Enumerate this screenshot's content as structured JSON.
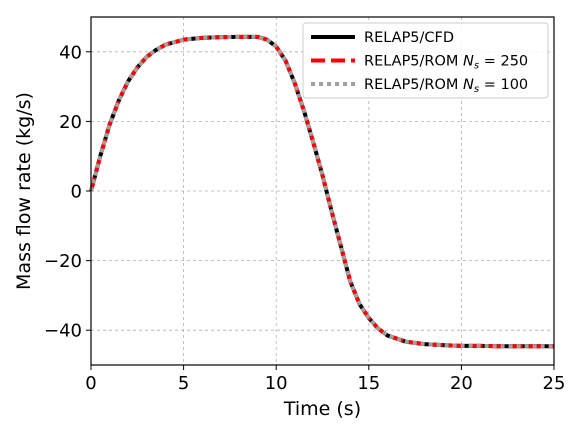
{
  "chart_data": {
    "type": "line",
    "title": "",
    "xlabel": "Time (s)",
    "ylabel": "Mass flow rate (kg/s)",
    "xlim": [
      0,
      25
    ],
    "ylim": [
      -50,
      50
    ],
    "xticks": [
      0,
      5,
      10,
      15,
      20,
      25
    ],
    "yticks": [
      -40,
      -20,
      0,
      20,
      40
    ],
    "xtick_labels": [
      "0",
      "5",
      "10",
      "15",
      "20",
      "25"
    ],
    "ytick_labels": [
      "−40",
      "−20",
      "0",
      "20",
      "40"
    ],
    "grid": true,
    "legend": {
      "position": "top-right",
      "entries": [
        {
          "prefix": "RELAP5/CFD",
          "symbol": "",
          "subscript": "",
          "suffix": ""
        },
        {
          "prefix": "RELAP5/ROM ",
          "symbol": "N",
          "subscript": "s",
          "suffix": " = 250"
        },
        {
          "prefix": "RELAP5/ROM ",
          "symbol": "N",
          "subscript": "s",
          "suffix": " = 100"
        }
      ]
    },
    "x": [
      0,
      0.25,
      0.5,
      1,
      1.5,
      2,
      2.5,
      3,
      3.5,
      4,
      5,
      6,
      7,
      8,
      9,
      9.5,
      10,
      10.5,
      11,
      11.5,
      12,
      12.5,
      13,
      13.5,
      14,
      14.5,
      15,
      15.5,
      16,
      17,
      18,
      19,
      20,
      21,
      22,
      23,
      24,
      25
    ],
    "series": [
      {
        "color": "#000000",
        "style": "solid",
        "values": [
          0,
          5,
          10,
          19,
          26,
          31.5,
          35.5,
          38.5,
          40.5,
          42,
          43.5,
          44,
          44.2,
          44.3,
          44.3,
          43.5,
          41.5,
          37.5,
          31,
          23,
          14,
          4.5,
          -6,
          -16,
          -26,
          -32.5,
          -36.5,
          -39.5,
          -41.5,
          -43.3,
          -44,
          -44.3,
          -44.5,
          -44.5,
          -44.6,
          -44.6,
          -44.6,
          -44.6
        ]
      },
      {
        "color": "#ff0000",
        "style": "dashed",
        "values": [
          0,
          5,
          10,
          19,
          26,
          31.5,
          35.5,
          38.5,
          40.5,
          42,
          43.5,
          44,
          44.2,
          44.3,
          44.3,
          43.5,
          41.5,
          37.5,
          31,
          23,
          14,
          4.5,
          -6,
          -16,
          -26,
          -32.5,
          -36.5,
          -39.5,
          -41.5,
          -43.3,
          -44,
          -44.3,
          -44.5,
          -44.5,
          -44.6,
          -44.6,
          -44.6,
          -44.6
        ]
      },
      {
        "color": "#a0a0a0",
        "style": "dotted",
        "values": [
          0,
          5,
          10,
          19,
          26,
          31.5,
          35.5,
          38.5,
          40.5,
          42,
          43.5,
          44,
          44.2,
          44.3,
          44.3,
          43.5,
          41.5,
          37.5,
          31,
          23,
          14,
          4.5,
          -6,
          -16,
          -26,
          -32.5,
          -36.5,
          -39.5,
          -41.5,
          -43.3,
          -44,
          -44.3,
          -44.5,
          -44.5,
          -44.6,
          -44.6,
          -44.6,
          -44.6
        ]
      }
    ]
  }
}
